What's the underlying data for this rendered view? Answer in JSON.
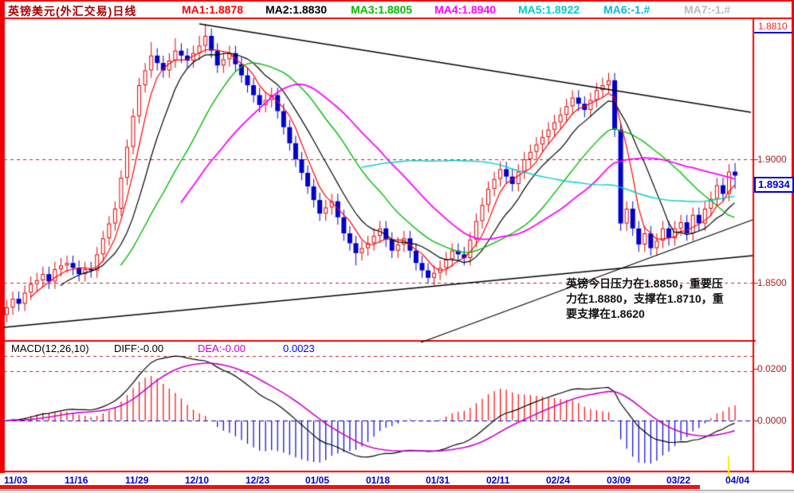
{
  "header": {
    "title": "英镑美元(外汇交易)日线",
    "title_color": "#aa0000",
    "mas": [
      {
        "label": "MA1:1.8878",
        "color": "#ff0000"
      },
      {
        "label": "MA2:1.8830",
        "color": "#000000"
      },
      {
        "label": "MA3:1.8805",
        "color": "#00bb00"
      },
      {
        "label": "MA4:1.8940",
        "color": "#ff00ff"
      },
      {
        "label": "MA5:1.8922",
        "color": "#00cccc"
      },
      {
        "label": "MA6:-1.#",
        "color": "#00bbdd"
      },
      {
        "label": "MA7:-1.#",
        "color": "#bbbbbb"
      }
    ]
  },
  "price_axis": {
    "top_label": "1.8810",
    "label_1900": "1.9000",
    "label_1850": "1.8500",
    "current_price": "1.8934"
  },
  "macd_header": {
    "name": "MACD(12,26,10)",
    "diff_label": "DIFF:-0.00",
    "dea_label": "DEA:-0.00",
    "value_label": "0.0023"
  },
  "macd_axis": {
    "label_high": "0.0200",
    "label_zero": "0.0000"
  },
  "annotation": {
    "text": "英镑今日压力在1.8850，重要压力在1.8880，支撑在1.8710，重要支撑在1.8620"
  },
  "dates": [
    "11/03",
    "11/16",
    "11/29",
    "12/10",
    "12/23",
    "01/05",
    "01/18",
    "01/31",
    "02/11",
    "02/24",
    "03/09",
    "03/22",
    "04/04"
  ],
  "chart_data": {
    "type": "candlestick",
    "title": "英镑美元(外汇交易)日线",
    "price_gridlines": [
      1.9,
      1.85
    ],
    "price_axis_labels": [
      "1.9000",
      "1.8500"
    ],
    "last_price": 1.8934,
    "high_marker": 1.881,
    "support_resistance": {
      "pressure": 1.885,
      "major_pressure": 1.888,
      "support": 1.871,
      "major_support": 1.862
    },
    "x_tick_labels": [
      "11/03",
      "11/16",
      "11/29",
      "12/10",
      "12/23",
      "01/05",
      "01/18",
      "01/31",
      "02/11",
      "02/24",
      "03/09",
      "03/22",
      "04/04"
    ],
    "x_ticks_every": 10,
    "candle_colors": {
      "up": "#dd0000",
      "down": "#0000cc"
    },
    "candles_ohlc": [
      [
        1.837,
        1.843,
        1.834,
        1.84
      ],
      [
        1.84,
        1.8465,
        1.837,
        1.8435
      ],
      [
        1.8435,
        1.8465,
        1.8385,
        1.8415
      ],
      [
        1.8415,
        1.849,
        1.8385,
        1.846
      ],
      [
        1.846,
        1.8525,
        1.843,
        1.8495
      ],
      [
        1.8495,
        1.854,
        1.8465,
        1.851
      ],
      [
        1.851,
        1.8565,
        1.848,
        1.8535
      ],
      [
        1.8535,
        1.8565,
        1.8475,
        1.8505
      ],
      [
        1.8505,
        1.8585,
        1.8475,
        1.8555
      ],
      [
        1.8555,
        1.86,
        1.8525,
        1.857
      ],
      [
        1.857,
        1.861,
        1.854,
        1.858
      ],
      [
        1.858,
        1.861,
        1.853,
        1.856
      ],
      [
        1.856,
        1.859,
        1.8505,
        1.8535
      ],
      [
        1.8535,
        1.8585,
        1.8505,
        1.8555
      ],
      [
        1.8555,
        1.8585,
        1.852,
        1.855
      ],
      [
        1.855,
        1.8645,
        1.852,
        1.8615
      ],
      [
        1.8615,
        1.871,
        1.8585,
        1.868
      ],
      [
        1.868,
        1.877,
        1.865,
        1.874
      ],
      [
        1.874,
        1.883,
        1.871,
        1.88
      ],
      [
        1.88,
        1.8955,
        1.877,
        1.8925
      ],
      [
        1.8925,
        1.908,
        1.8895,
        1.905
      ],
      [
        1.905,
        1.9205,
        1.902,
        1.9175
      ],
      [
        1.9175,
        1.933,
        1.9145,
        1.93
      ],
      [
        1.93,
        1.939,
        1.927,
        1.936
      ],
      [
        1.936,
        1.9475,
        1.933,
        1.942
      ],
      [
        1.942,
        1.945,
        1.936,
        1.939
      ],
      [
        1.939,
        1.942,
        1.933,
        1.936
      ],
      [
        1.936,
        1.943,
        1.933,
        1.94
      ],
      [
        1.94,
        1.949,
        1.937,
        1.944
      ],
      [
        1.944,
        1.947,
        1.939,
        1.942
      ],
      [
        1.942,
        1.945,
        1.937,
        1.94
      ],
      [
        1.94,
        1.946,
        1.937,
        1.943
      ],
      [
        1.943,
        1.95,
        1.94,
        1.946
      ],
      [
        1.946,
        1.9548,
        1.943,
        1.95
      ],
      [
        1.95,
        1.953,
        1.941,
        1.944
      ],
      [
        1.944,
        1.947,
        1.935,
        1.938
      ],
      [
        1.938,
        1.9435,
        1.935,
        1.9405
      ],
      [
        1.9405,
        1.946,
        1.9375,
        1.943
      ],
      [
        1.943,
        1.946,
        1.9355,
        1.9385
      ],
      [
        1.9385,
        1.9415,
        1.931,
        1.934
      ],
      [
        1.934,
        1.937,
        1.927,
        1.93
      ],
      [
        1.93,
        1.933,
        1.923,
        1.926
      ],
      [
        1.926,
        1.929,
        1.919,
        1.922
      ],
      [
        1.922,
        1.927,
        1.919,
        1.924
      ],
      [
        1.924,
        1.929,
        1.921,
        1.926
      ],
      [
        1.926,
        1.929,
        1.9165,
        1.9195
      ],
      [
        1.9195,
        1.9225,
        1.91,
        1.913
      ],
      [
        1.913,
        1.916,
        1.9035,
        1.9065
      ],
      [
        1.9065,
        1.9095,
        1.897,
        1.9
      ],
      [
        1.9,
        1.903,
        1.8915,
        1.8945
      ],
      [
        1.8945,
        1.8975,
        1.886,
        1.889
      ],
      [
        1.889,
        1.892,
        1.8805,
        1.8835
      ],
      [
        1.8835,
        1.8865,
        1.875,
        1.878
      ],
      [
        1.878,
        1.8835,
        1.875,
        1.8805
      ],
      [
        1.8805,
        1.886,
        1.8775,
        1.883
      ],
      [
        1.883,
        1.886,
        1.8735,
        1.8765
      ],
      [
        1.8765,
        1.8795,
        1.867,
        1.87
      ],
      [
        1.87,
        1.873,
        1.863,
        1.866
      ],
      [
        1.866,
        1.869,
        1.857,
        1.862
      ],
      [
        1.862,
        1.867,
        1.859,
        1.864
      ],
      [
        1.864,
        1.869,
        1.861,
        1.866
      ],
      [
        1.866,
        1.872,
        1.863,
        1.869
      ],
      [
        1.869,
        1.875,
        1.866,
        1.872
      ],
      [
        1.872,
        1.875,
        1.8645,
        1.8675
      ],
      [
        1.8675,
        1.8705,
        1.86,
        1.863
      ],
      [
        1.863,
        1.8685,
        1.86,
        1.8655
      ],
      [
        1.8655,
        1.871,
        1.8625,
        1.868
      ],
      [
        1.868,
        1.871,
        1.86,
        1.863
      ],
      [
        1.863,
        1.866,
        1.855,
        1.858
      ],
      [
        1.858,
        1.861,
        1.852,
        1.855
      ],
      [
        1.855,
        1.858,
        1.8496,
        1.852
      ],
      [
        1.852,
        1.857,
        1.849,
        1.854
      ],
      [
        1.854,
        1.859,
        1.851,
        1.856
      ],
      [
        1.856,
        1.8625,
        1.853,
        1.8595
      ],
      [
        1.8595,
        1.866,
        1.8565,
        1.863
      ],
      [
        1.863,
        1.866,
        1.8585,
        1.8615
      ],
      [
        1.8615,
        1.8645,
        1.857,
        1.86
      ],
      [
        1.86,
        1.8705,
        1.857,
        1.8675
      ],
      [
        1.8675,
        1.878,
        1.8645,
        1.875
      ],
      [
        1.875,
        1.8845,
        1.872,
        1.8815
      ],
      [
        1.8815,
        1.891,
        1.8785,
        1.888
      ],
      [
        1.888,
        1.895,
        1.885,
        1.892
      ],
      [
        1.892,
        1.899,
        1.889,
        1.896
      ],
      [
        1.896,
        1.899,
        1.89,
        1.893
      ],
      [
        1.893,
        1.896,
        1.887,
        1.89
      ],
      [
        1.89,
        1.898,
        1.887,
        1.895
      ],
      [
        1.895,
        1.903,
        1.892,
        1.9
      ],
      [
        1.9,
        1.906,
        1.897,
        1.903
      ],
      [
        1.903,
        1.909,
        1.9,
        1.906
      ],
      [
        1.906,
        1.912,
        1.903,
        1.909
      ],
      [
        1.909,
        1.915,
        1.906,
        1.912
      ],
      [
        1.912,
        1.918,
        1.909,
        1.915
      ],
      [
        1.915,
        1.921,
        1.912,
        1.918
      ],
      [
        1.918,
        1.9245,
        1.915,
        1.9215
      ],
      [
        1.9215,
        1.928,
        1.9185,
        1.925
      ],
      [
        1.925,
        1.928,
        1.9195,
        1.9225
      ],
      [
        1.9225,
        1.9255,
        1.917,
        1.92
      ],
      [
        1.92,
        1.927,
        1.917,
        1.924
      ],
      [
        1.924,
        1.931,
        1.921,
        1.928
      ],
      [
        1.928,
        1.933,
        1.925,
        1.93
      ],
      [
        1.93,
        1.935,
        1.927,
        1.932
      ],
      [
        1.932,
        1.935,
        1.909,
        1.912
      ],
      [
        1.912,
        1.915,
        1.871,
        1.874
      ],
      [
        1.874,
        1.883,
        1.871,
        1.88
      ],
      [
        1.88,
        1.883,
        1.869,
        1.872
      ],
      [
        1.872,
        1.875,
        1.8625,
        1.8655
      ],
      [
        1.8655,
        1.873,
        1.8625,
        1.87
      ],
      [
        1.87,
        1.873,
        1.861,
        1.864
      ],
      [
        1.864,
        1.87,
        1.861,
        1.867
      ],
      [
        1.867,
        1.875,
        1.864,
        1.872
      ],
      [
        1.872,
        1.875,
        1.865,
        1.868
      ],
      [
        1.868,
        1.875,
        1.865,
        1.872
      ],
      [
        1.872,
        1.8775,
        1.869,
        1.8745
      ],
      [
        1.8745,
        1.8775,
        1.867,
        1.87
      ],
      [
        1.87,
        1.8805,
        1.867,
        1.8775
      ],
      [
        1.8775,
        1.8805,
        1.871,
        1.874
      ],
      [
        1.874,
        1.883,
        1.871,
        1.88
      ],
      [
        1.88,
        1.887,
        1.877,
        1.884
      ],
      [
        1.884,
        1.8925,
        1.881,
        1.8895
      ],
      [
        1.8895,
        1.8925,
        1.883,
        1.886
      ],
      [
        1.886,
        1.898,
        1.883,
        1.895
      ],
      [
        1.895,
        1.8985,
        1.888,
        1.8934
      ]
    ],
    "moving_averages": [
      {
        "name": "MA1",
        "period": 5,
        "color": "#ff0000",
        "width": 1.2
      },
      {
        "name": "MA2",
        "period": 10,
        "color": "#000000",
        "width": 1.2
      },
      {
        "name": "MA3",
        "period": 20,
        "color": "#00bb00",
        "width": 1.4
      },
      {
        "name": "MA4",
        "period": 30,
        "color": "#ff00ff",
        "width": 1.8
      },
      {
        "name": "MA5",
        "period": 60,
        "color": "#00cccc",
        "width": 1.4
      }
    ],
    "trendlines": [
      {
        "name": "descending-resistance",
        "from": [
          250,
          30
        ],
        "to": [
          942,
          141
        ],
        "color": "#000000"
      },
      {
        "name": "ascending-support-long",
        "from": [
          5,
          411
        ],
        "to": [
          944,
          321
        ],
        "color": "#000000"
      },
      {
        "name": "ascending-support-steep",
        "from": [
          528,
          430
        ],
        "to": [
          944,
          276
        ],
        "color": "#000000"
      }
    ],
    "macd": {
      "params": [
        12,
        26,
        10
      ],
      "grid_labels": [
        "0.0200",
        "0.0000"
      ],
      "diff_display": "-0.00",
      "dea_display": "-0.00",
      "macd_display": "0.0023",
      "diff_color": "#000000",
      "dea_color": "#cc00cc",
      "hist_up_color": "#ff0000",
      "hist_down_color": "#0000dd"
    }
  }
}
